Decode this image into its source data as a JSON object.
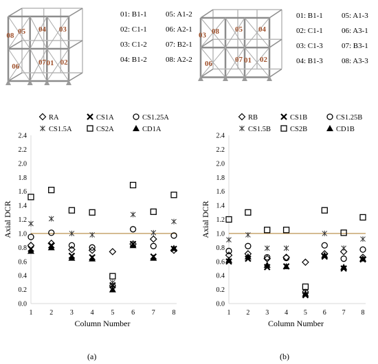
{
  "models": [
    {
      "labels": [
        "01: B1-1",
        "02: C1-1",
        "03: C1-2",
        "04: B1-2",
        "05: A1-2",
        "06: A2-1",
        "07: B2-1",
        "08: A2-2"
      ],
      "frame_tags": [
        "05",
        "04",
        "03",
        "08",
        "06",
        "07",
        "01",
        "02"
      ]
    },
    {
      "labels": [
        "01: B1-1",
        "02: C1-1",
        "03: C1-3",
        "04: B1-3",
        "05: A1-3",
        "06: A3-1",
        "07: B3-1",
        "08: A3-3"
      ],
      "frame_tags": [
        "08",
        "05",
        "04",
        "03",
        "06",
        "07",
        "01",
        "02"
      ]
    }
  ],
  "colors": {
    "reference_line": "#b5863c",
    "axis": "#d9d9d9",
    "frame": "#8c8c8c",
    "tag": "#a0522d"
  },
  "chart_data": [
    {
      "type": "scatter",
      "caption": "(a)",
      "xlabel": "Column Number",
      "ylabel": "Axial DCR",
      "xlim": [
        1,
        8
      ],
      "ylim": [
        0,
        2.4
      ],
      "yticks": [
        "0.0",
        "0.2",
        "0.4",
        "0.6",
        "0.8",
        "1.0",
        "1.2",
        "1.4",
        "1.6",
        "1.8",
        "2.0",
        "2.2",
        "2.4"
      ],
      "xticks": [
        "1",
        "2",
        "3",
        "4",
        "5",
        "6",
        "7",
        "8"
      ],
      "reference_line": 1.0,
      "legend_position": "top",
      "series": [
        {
          "name": "RA",
          "marker": "diamond",
          "x": [
            1,
            2,
            3,
            4,
            5,
            6,
            7,
            8
          ],
          "y": [
            0.83,
            0.86,
            0.77,
            0.76,
            0.74,
            0.85,
            0.92,
            0.76
          ]
        },
        {
          "name": "CS1A",
          "marker": "x",
          "x": [
            1,
            2,
            3,
            4,
            5,
            6,
            7,
            8
          ],
          "y": [
            0.78,
            0.83,
            0.68,
            0.66,
            0.26,
            0.85,
            0.67,
            0.78
          ]
        },
        {
          "name": "CS1.25A",
          "marker": "circle",
          "x": [
            1,
            2,
            3,
            4,
            5,
            6,
            7,
            8
          ],
          "y": [
            0.95,
            1.01,
            0.83,
            0.8,
            0.25,
            1.06,
            0.82,
            0.97
          ]
        },
        {
          "name": "CS1.5A",
          "marker": "asterisk",
          "x": [
            1,
            2,
            3,
            4,
            5,
            6,
            7,
            8
          ],
          "y": [
            1.14,
            1.21,
            1.0,
            0.98,
            0.3,
            1.27,
            1.01,
            1.17
          ]
        },
        {
          "name": "CS2A",
          "marker": "square",
          "x": [
            1,
            2,
            3,
            4,
            5,
            6,
            7,
            8
          ],
          "y": [
            1.52,
            1.62,
            1.33,
            1.3,
            0.39,
            1.69,
            1.31,
            1.55
          ]
        },
        {
          "name": "CD1A",
          "marker": "triangle",
          "x": [
            1,
            2,
            3,
            4,
            5,
            6,
            7,
            8
          ],
          "y": [
            0.75,
            0.8,
            0.65,
            0.64,
            0.2,
            0.83,
            0.65,
            0.79
          ]
        }
      ]
    },
    {
      "type": "scatter",
      "caption": "(b)",
      "xlabel": "Column Number",
      "ylabel": "Axial DCR",
      "xlim": [
        1,
        8
      ],
      "ylim": [
        0,
        2.4
      ],
      "yticks": [
        "0.0",
        "0.2",
        "0.4",
        "0.6",
        "0.8",
        "1.0",
        "1.2",
        "1.4",
        "1.6",
        "1.8",
        "2.0",
        "2.2",
        "2.4"
      ],
      "xticks": [
        "1",
        "2",
        "3",
        "4",
        "5",
        "6",
        "7",
        "8"
      ],
      "reference_line": 1.0,
      "legend_position": "top",
      "series": [
        {
          "name": "RB",
          "marker": "diamond",
          "x": [
            1,
            2,
            3,
            4,
            5,
            6,
            7,
            8
          ],
          "y": [
            0.69,
            0.71,
            0.64,
            0.66,
            0.59,
            0.71,
            0.74,
            0.66
          ]
        },
        {
          "name": "CS1B",
          "marker": "x",
          "x": [
            1,
            2,
            3,
            4,
            5,
            6,
            7,
            8
          ],
          "y": [
            0.6,
            0.64,
            0.52,
            0.53,
            0.12,
            0.67,
            0.5,
            0.63
          ]
        },
        {
          "name": "CS1.25B",
          "marker": "circle",
          "x": [
            1,
            2,
            3,
            4,
            5,
            6,
            7,
            8
          ],
          "y": [
            0.75,
            0.82,
            0.66,
            0.65,
            0.16,
            0.83,
            0.64,
            0.77
          ]
        },
        {
          "name": "CS1.5B",
          "marker": "asterisk",
          "x": [
            1,
            2,
            3,
            4,
            5,
            6,
            7,
            8
          ],
          "y": [
            0.91,
            0.98,
            0.79,
            0.79,
            0.17,
            1.0,
            0.79,
            0.92
          ]
        },
        {
          "name": "CS2B",
          "marker": "square",
          "x": [
            1,
            2,
            3,
            4,
            5,
            6,
            7,
            8
          ],
          "y": [
            1.2,
            1.3,
            1.05,
            1.05,
            0.24,
            1.33,
            1.01,
            1.23
          ]
        },
        {
          "name": "CD1B",
          "marker": "triangle",
          "x": [
            1,
            2,
            3,
            4,
            5,
            6,
            7,
            8
          ],
          "y": [
            0.62,
            0.67,
            0.55,
            0.53,
            0.14,
            0.69,
            0.52,
            0.64
          ]
        }
      ]
    }
  ]
}
